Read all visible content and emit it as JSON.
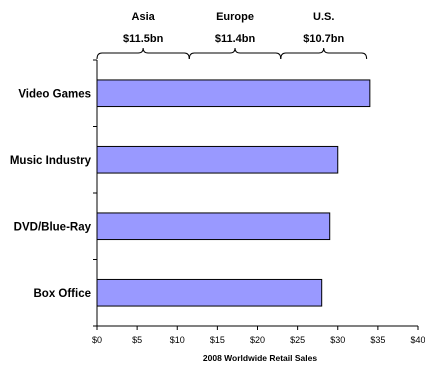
{
  "chart_data": {
    "type": "bar",
    "orientation": "horizontal",
    "categories": [
      "Video Games",
      "Music Industry",
      "DVD/Blue-Ray",
      "Box Office"
    ],
    "values": [
      34,
      30,
      29,
      28
    ],
    "xlabel": "2008 Worldwide Retail Sales",
    "xlim": [
      0,
      40
    ],
    "xticks": [
      0,
      5,
      10,
      15,
      20,
      25,
      30,
      35,
      40
    ],
    "xtick_labels": [
      "$0",
      "$5",
      "$10",
      "$15",
      "$20",
      "$25",
      "$30",
      "$35",
      "$40"
    ],
    "grid": false,
    "bar_color": "#9999ff",
    "bar_edge_color": "#000000",
    "annotations": [
      {
        "label": "Asia",
        "value_label": "$11.5bn",
        "start": 0,
        "end": 11.5
      },
      {
        "label": "Europe",
        "value_label": "$11.4bn",
        "start": 11.5,
        "end": 22.9
      },
      {
        "label": "U.S.",
        "value_label": "$10.7bn",
        "start": 22.9,
        "end": 33.6
      }
    ]
  }
}
